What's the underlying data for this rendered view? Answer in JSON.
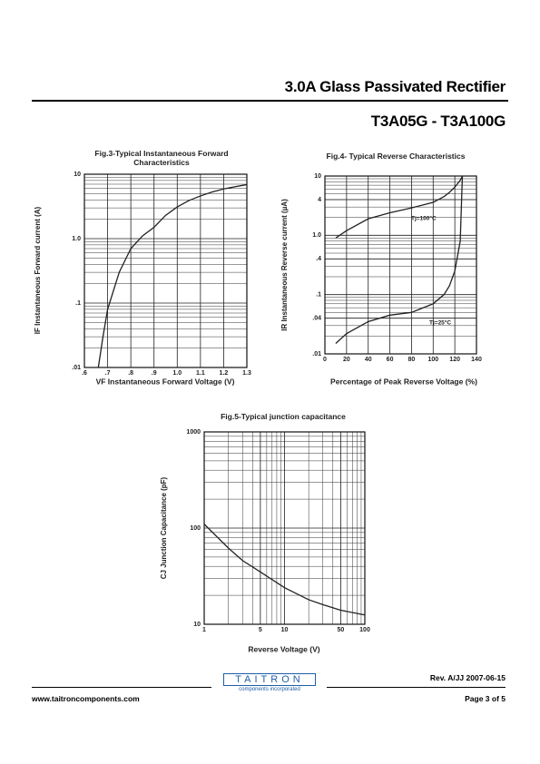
{
  "header": {
    "title": "3.0A Glass Passivated Rectifier",
    "part_range": "T3A05G - T3A100G"
  },
  "chart_data": [
    {
      "type": "line",
      "title": "Fig.3-Typical Instantaneous Forward Characteristics",
      "x_label": "VF Instantaneous Forward Voltage (V)",
      "y_label": "IF Instantaneous Forward current (A)",
      "x": [
        0.66,
        0.68,
        0.7,
        0.75,
        0.8,
        0.85,
        0.9,
        0.95,
        1.0,
        1.05,
        1.1,
        1.15,
        1.2,
        1.25,
        1.3
      ],
      "values": [
        0.01,
        0.03,
        0.08,
        0.3,
        0.7,
        1.1,
        1.5,
        2.3,
        3.1,
        3.9,
        4.6,
        5.3,
        5.9,
        6.4,
        6.9
      ],
      "color": "#222222",
      "xlim": [
        0.6,
        1.3
      ],
      "xticks": [
        {
          "value": 0.6,
          "label": ".6"
        },
        {
          "value": 0.7,
          "label": ".7"
        },
        {
          "value": 0.8,
          "label": ".8"
        },
        {
          "value": 0.9,
          "label": ".9"
        },
        {
          "value": 1.0,
          "label": "1.0"
        },
        {
          "value": 1.1,
          "label": "1.1"
        },
        {
          "value": 1.2,
          "label": "1.2"
        },
        {
          "value": 1.3,
          "label": "1.3"
        }
      ],
      "ylim": [
        0.01,
        10
      ],
      "yticks": [
        {
          "value": 0.01,
          "label": ".01"
        },
        {
          "value": 0.1,
          "label": ".1"
        },
        {
          "value": 1.0,
          "label": "1.0"
        },
        10
      ],
      "ylog": true,
      "xlog": false,
      "grid": true,
      "minor_grid": true
    },
    {
      "type": "line",
      "title": "Fig.4- Typical Reverse Characteristics",
      "x_label": "Percentage of Peak Reverse Voltage (%)",
      "y_label": "IR Instantaneous Reverse current (µA)",
      "x": [
        10,
        20,
        40,
        60,
        80,
        100,
        110,
        115,
        120,
        125,
        127
      ],
      "series": [
        {
          "name": "Tj=100°C",
          "color": "#222222",
          "values": [
            0.9,
            1.2,
            1.9,
            2.4,
            2.9,
            3.6,
            4.5,
            5.3,
            6.5,
            8.5,
            10
          ]
        },
        {
          "name": "Tj=25°C",
          "color": "#222222",
          "values": [
            0.015,
            0.022,
            0.035,
            0.045,
            0.05,
            0.07,
            0.1,
            0.14,
            0.25,
            0.8,
            10
          ]
        }
      ],
      "xlim": [
        0,
        140
      ],
      "xticks": [
        0,
        20,
        40,
        60,
        80,
        100,
        120,
        140
      ],
      "ylim": [
        0.01,
        10
      ],
      "yticks": [
        {
          "value": 0.01,
          "label": ".01"
        },
        {
          "value": 0.04,
          "label": ".04"
        },
        {
          "value": 0.1,
          "label": ".1"
        },
        {
          "value": 0.4,
          "label": ".4"
        },
        {
          "value": 1.0,
          "label": "1.0"
        },
        4,
        10
      ],
      "ylog": true,
      "xlog": false,
      "grid": true,
      "minor_grid": true
    },
    {
      "type": "line",
      "title": "Fig.5-Typical junction capacitance",
      "x_label": "Reverse Voltage (V)",
      "y_label": "CJ Junction Capacitance (pF)",
      "x": [
        1,
        2,
        3,
        5,
        10,
        20,
        30,
        50,
        100
      ],
      "values": [
        110,
        62,
        46,
        35,
        24,
        18,
        16,
        14,
        12.5
      ],
      "color": "#222222",
      "xlim": [
        1,
        100
      ],
      "xticks": [
        1,
        5,
        10,
        50,
        100
      ],
      "ylim": [
        10,
        1000
      ],
      "yticks": [
        10,
        100,
        1000
      ],
      "ylog": true,
      "xlog": true,
      "grid": true,
      "minor_grid": true
    }
  ],
  "footer": {
    "logo": "TAITRON",
    "logo_tagline": "components incorporated",
    "revision": "Rev. A/JJ 2007-06-15",
    "website": "www.taitroncomponents.com",
    "page": "Page 3 of 5"
  }
}
